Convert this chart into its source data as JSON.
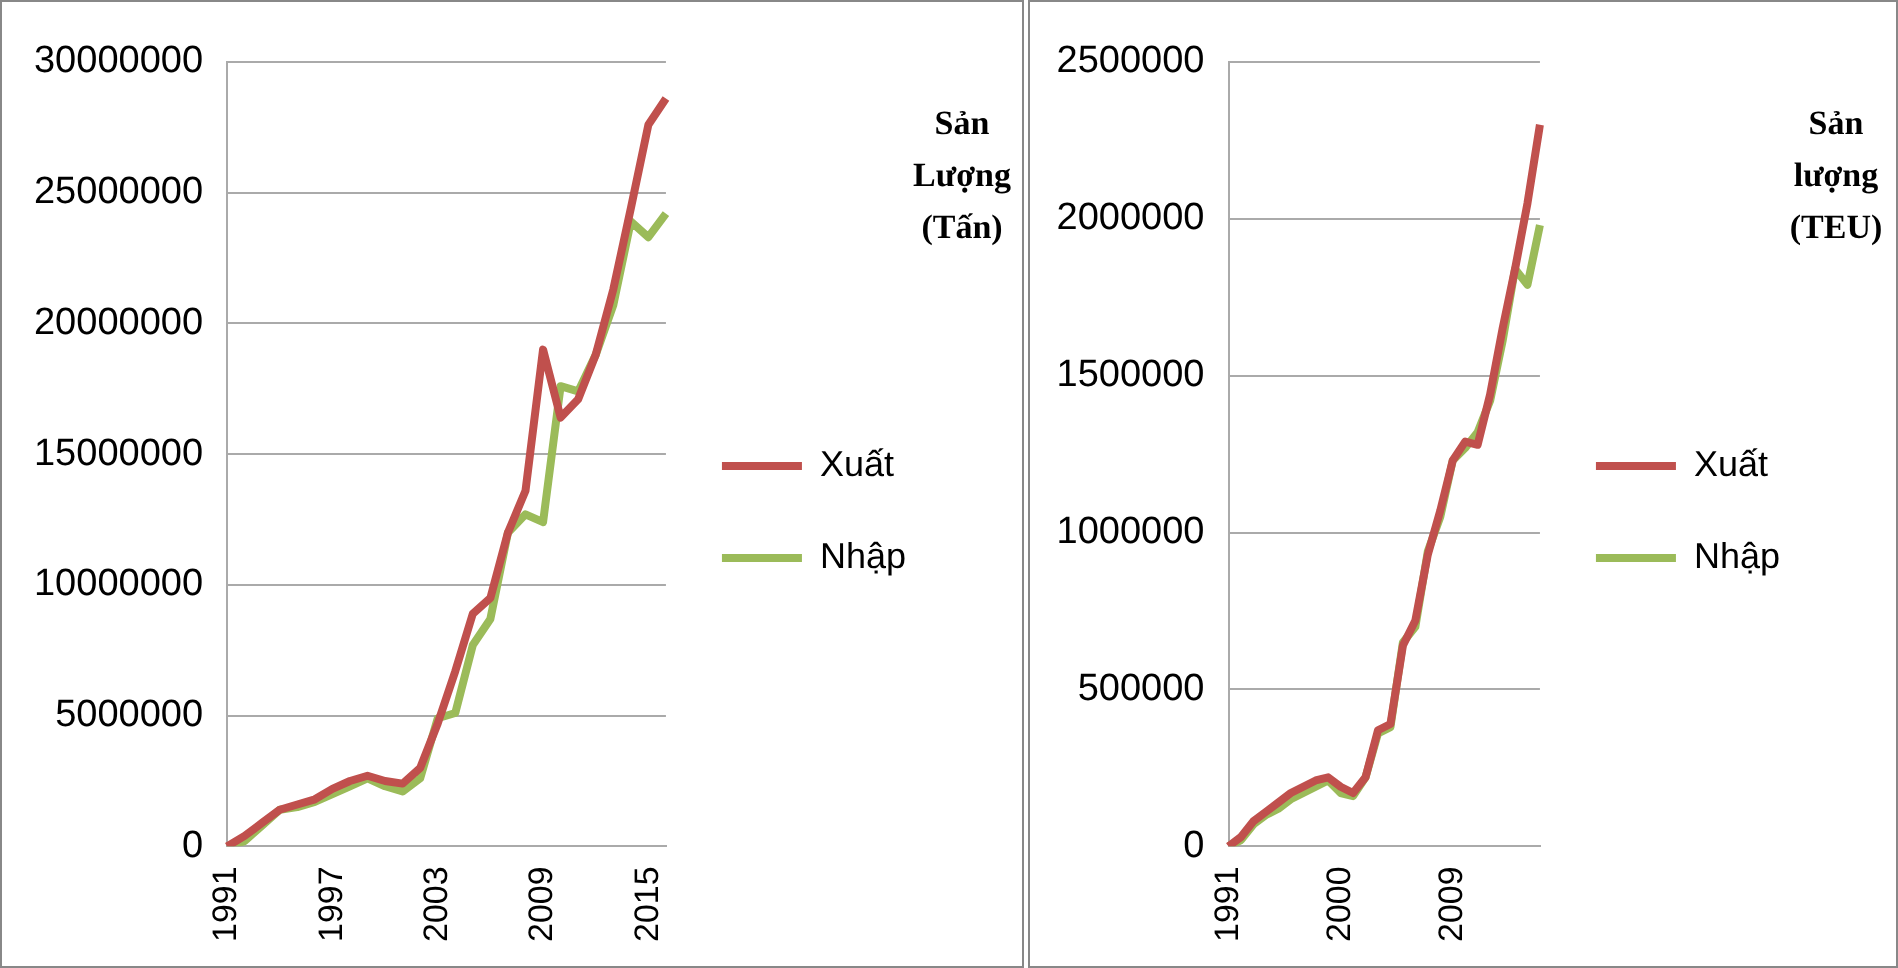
{
  "chart_data": [
    {
      "type": "line",
      "ylabel": "Sản Lượng (Tấn)",
      "categories": [
        "1991",
        null,
        null,
        null,
        null,
        null,
        "1997",
        null,
        null,
        null,
        null,
        null,
        "2003",
        null,
        null,
        null,
        null,
        null,
        "2009",
        null,
        null,
        null,
        null,
        null,
        "2015",
        null
      ],
      "series": [
        {
          "name": "Xuất",
          "color": "#c0504d",
          "values": [
            0,
            400000,
            900000,
            1400000,
            1600000,
            1800000,
            2200000,
            2500000,
            2700000,
            2500000,
            2400000,
            3000000,
            4700000,
            6700000,
            8900000,
            9500000,
            12000000,
            13600000,
            19000000,
            16400000,
            17100000,
            18800000,
            21300000,
            24400000,
            27600000,
            28600000
          ]
        },
        {
          "name": "Nhập",
          "color": "#9bbb59",
          "values": [
            0,
            200000,
            800000,
            1400000,
            1500000,
            1700000,
            2000000,
            2300000,
            2600000,
            2300000,
            2100000,
            2600000,
            4900000,
            5100000,
            7700000,
            8700000,
            12000000,
            12700000,
            12400000,
            17600000,
            17400000,
            18800000,
            20700000,
            23900000,
            23300000,
            24200000
          ]
        }
      ],
      "ylim": [
        0,
        30000000
      ],
      "yticks": [
        0,
        5000000,
        10000000,
        15000000,
        20000000,
        25000000,
        30000000
      ],
      "grid": "y",
      "legend": "right",
      "marker": "none"
    },
    {
      "type": "line",
      "ylabel": "Sản lượng (TEU)",
      "categories": [
        "1991",
        null,
        null,
        null,
        null,
        null,
        null,
        null,
        null,
        "2000",
        null,
        null,
        null,
        null,
        null,
        null,
        null,
        null,
        "2009",
        null,
        null,
        null,
        null,
        null,
        null,
        null
      ],
      "series": [
        {
          "name": "Xuất",
          "color": "#c0504d",
          "values": [
            0,
            30000,
            80000,
            110000,
            140000,
            170000,
            190000,
            210000,
            220000,
            190000,
            170000,
            220000,
            370000,
            390000,
            640000,
            720000,
            930000,
            1070000,
            1230000,
            1290000,
            1280000,
            1440000,
            1650000,
            1840000,
            2050000,
            2300000
          ]
        },
        {
          "name": "Nhập",
          "color": "#9bbb59",
          "values": [
            0,
            20000,
            70000,
            100000,
            120000,
            150000,
            170000,
            190000,
            210000,
            170000,
            160000,
            220000,
            360000,
            380000,
            650000,
            700000,
            940000,
            1050000,
            1230000,
            1270000,
            1320000,
            1420000,
            1610000,
            1840000,
            1790000,
            1980000
          ]
        }
      ],
      "ylim": [
        0,
        2500000
      ],
      "yticks": [
        0,
        500000,
        1000000,
        1500000,
        2000000,
        2500000
      ],
      "grid": "y",
      "legend": "right",
      "marker": "none"
    }
  ]
}
